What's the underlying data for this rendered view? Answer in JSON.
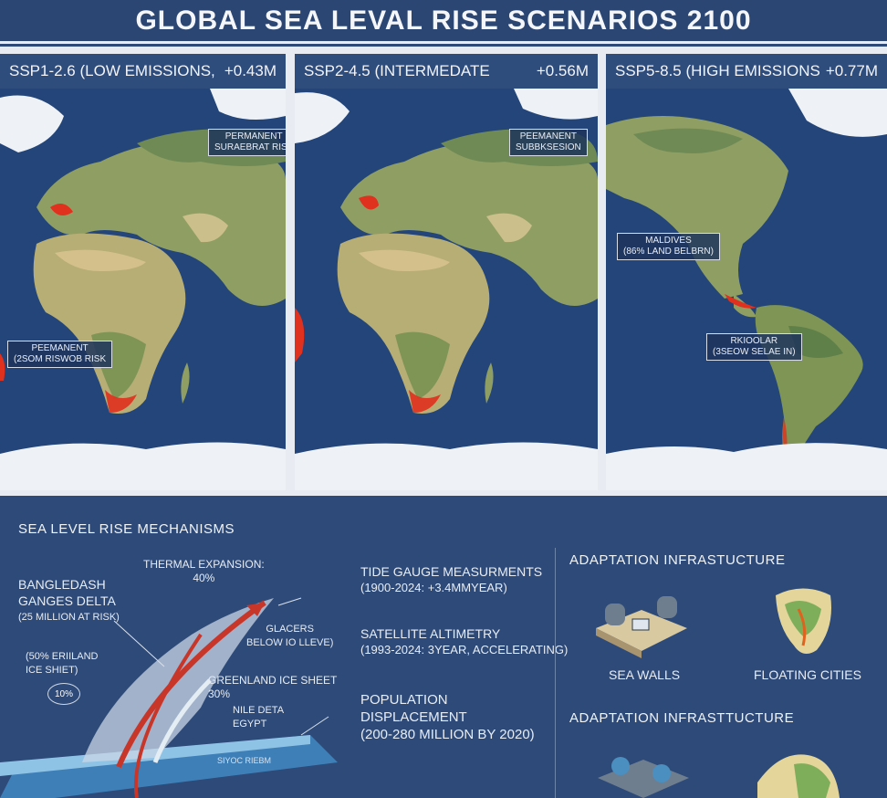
{
  "title": "GLOBAL SEA LEVAL RISE SCENARIOS 2100",
  "panels": [
    {
      "scenario": "SSP1-2.6 (LOW EMISSIONS,",
      "rise": "+0.43M",
      "callouts": [
        {
          "line1": "PERMANENT",
          "line2": "SURAEBRAT RISK"
        },
        {
          "line1": "PEEMANENT",
          "line2": "(2SOM RISWOB RISK"
        }
      ]
    },
    {
      "scenario": "SSP2-4.5 (INTERMEDATE",
      "rise": "+0.56M",
      "callouts": [
        {
          "line1": "PEEMANENT",
          "line2": "SUBBKSESION"
        }
      ]
    },
    {
      "scenario": "SSP5-8.5 (HIGH EMISSIONS",
      "rise": "+0.77M",
      "callouts": [
        {
          "line1": "MALDIVES",
          "line2": "(86% LAND BELBRN)"
        },
        {
          "line1": "RKIOOLAR",
          "line2": "(3SEOW SELAE IN)"
        }
      ]
    }
  ],
  "mechanisms": {
    "heading": "SEA LEVEL RISE MECHANISMS",
    "thermal": {
      "line1": "THERMAL EXPANSION:",
      "line2": "40%"
    },
    "bangladesh": {
      "line1": "BANGLEDASH",
      "line2": "GANGES DELTA",
      "line3": "(25 MILLION AT RISK)"
    },
    "glaciers": {
      "line1": "GLACERS",
      "line2": "BELOW IO LLEVE)"
    },
    "greenland_left": {
      "line1": "(50% ERIILAND",
      "line2": "ICE SHIET)"
    },
    "circle_pct": "10%",
    "greenland": {
      "line1": "GREENLAND ICE SHEET",
      "line2": "30%"
    },
    "nile": {
      "line1": "NILE DETA",
      "line2": "EGYPT"
    },
    "bottom_label": "SIYOC RIEBM",
    "tide": {
      "line1": "TIDE GAUGE MEASURMENTS",
      "line2": "(1900-2024: +3.4MMYEAR)"
    },
    "satellite": {
      "line1": "SATELLITE ALTIMETRY",
      "line2": "(1993-2024: 3YEAR, ACCELERATING)"
    },
    "population": {
      "line1": "POPULATION",
      "line2": "DISPLACEMENT",
      "line3": "(200-280 MILLION BY 2020)"
    }
  },
  "adaptation": {
    "heading1": "ADAPTATION INFRASTUCTURE",
    "heading2": "ADAPTATION INFRASTTUCTURE",
    "item1": "SEA WALLS",
    "item2": "FLOATING CITIES"
  },
  "colors": {
    "ocean": "#23457a",
    "land": "#a6ab72",
    "risk": "#e0301e",
    "ice": "#eef2f6"
  }
}
